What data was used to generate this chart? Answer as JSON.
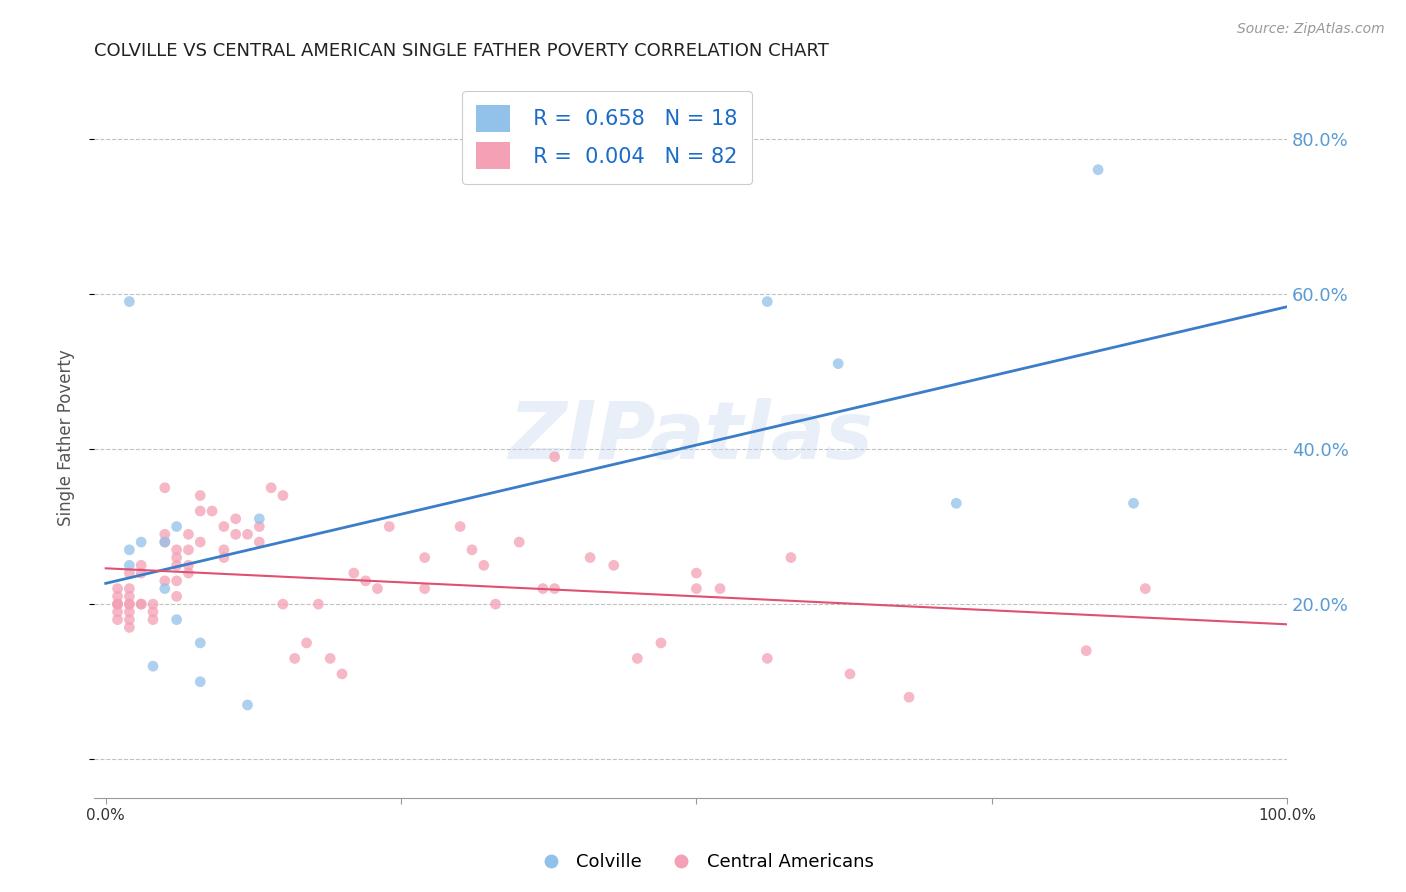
{
  "title": "COLVILLE VS CENTRAL AMERICAN SINGLE FATHER POVERTY CORRELATION CHART",
  "source": "Source: ZipAtlas.com",
  "ylabel": "Single Father Poverty",
  "watermark": "ZIPatlas",
  "colville_color": "#92C1E9",
  "central_color": "#F4A0B5",
  "colville_line_color": "#3A7DC9",
  "central_line_color": "#E05070",
  "legend_R1": "R =  0.658",
  "legend_N1": "N = 18",
  "legend_R2": "R =  0.004",
  "legend_N2": "N = 82",
  "colville_x": [
    0.02,
    0.02,
    0.02,
    0.03,
    0.04,
    0.05,
    0.05,
    0.06,
    0.06,
    0.08,
    0.08,
    0.12,
    0.13,
    0.56,
    0.62,
    0.72,
    0.84,
    0.87
  ],
  "colville_y": [
    0.59,
    0.27,
    0.25,
    0.28,
    0.12,
    0.28,
    0.22,
    0.3,
    0.18,
    0.15,
    0.1,
    0.07,
    0.31,
    0.59,
    0.51,
    0.33,
    0.76,
    0.33
  ],
  "central_x": [
    0.01,
    0.01,
    0.01,
    0.01,
    0.01,
    0.01,
    0.01,
    0.02,
    0.02,
    0.02,
    0.02,
    0.02,
    0.02,
    0.02,
    0.02,
    0.03,
    0.03,
    0.03,
    0.03,
    0.04,
    0.04,
    0.04,
    0.05,
    0.05,
    0.05,
    0.05,
    0.06,
    0.06,
    0.06,
    0.06,
    0.06,
    0.07,
    0.07,
    0.07,
    0.07,
    0.08,
    0.08,
    0.08,
    0.09,
    0.1,
    0.1,
    0.1,
    0.11,
    0.11,
    0.12,
    0.13,
    0.13,
    0.14,
    0.15,
    0.15,
    0.16,
    0.17,
    0.18,
    0.19,
    0.2,
    0.21,
    0.22,
    0.23,
    0.24,
    0.27,
    0.27,
    0.3,
    0.31,
    0.32,
    0.33,
    0.35,
    0.37,
    0.38,
    0.38,
    0.41,
    0.43,
    0.45,
    0.47,
    0.5,
    0.5,
    0.52,
    0.56,
    0.58,
    0.63,
    0.68,
    0.83,
    0.88
  ],
  "central_y": [
    0.19,
    0.2,
    0.21,
    0.22,
    0.2,
    0.18,
    0.2,
    0.24,
    0.21,
    0.2,
    0.19,
    0.2,
    0.18,
    0.17,
    0.22,
    0.25,
    0.24,
    0.2,
    0.2,
    0.2,
    0.18,
    0.19,
    0.35,
    0.29,
    0.28,
    0.23,
    0.27,
    0.26,
    0.25,
    0.23,
    0.21,
    0.29,
    0.27,
    0.25,
    0.24,
    0.34,
    0.32,
    0.28,
    0.32,
    0.27,
    0.3,
    0.26,
    0.31,
    0.29,
    0.29,
    0.3,
    0.28,
    0.35,
    0.34,
    0.2,
    0.13,
    0.15,
    0.2,
    0.13,
    0.11,
    0.24,
    0.23,
    0.22,
    0.3,
    0.26,
    0.22,
    0.3,
    0.27,
    0.25,
    0.2,
    0.28,
    0.22,
    0.39,
    0.22,
    0.26,
    0.25,
    0.13,
    0.15,
    0.24,
    0.22,
    0.22,
    0.13,
    0.26,
    0.11,
    0.08,
    0.14,
    0.22
  ],
  "ylim": [
    -0.05,
    0.88
  ],
  "xlim": [
    -0.01,
    1.0
  ],
  "yticks": [
    0.0,
    0.2,
    0.4,
    0.6,
    0.8
  ],
  "ytick_labels": [
    "",
    "20.0%",
    "40.0%",
    "60.0%",
    "80.0%"
  ],
  "xticks": [
    0.0,
    0.25,
    0.5,
    0.75,
    1.0
  ],
  "xtick_labels": [
    "0.0%",
    "",
    "",
    "",
    "100.0%"
  ],
  "background_color": "#FFFFFF",
  "grid_color": "#BBBBBB",
  "title_color": "#222222",
  "axis_label_color": "#555555",
  "right_yaxis_color": "#5B9BD5",
  "marker_size": 60,
  "marker_alpha": 0.75
}
